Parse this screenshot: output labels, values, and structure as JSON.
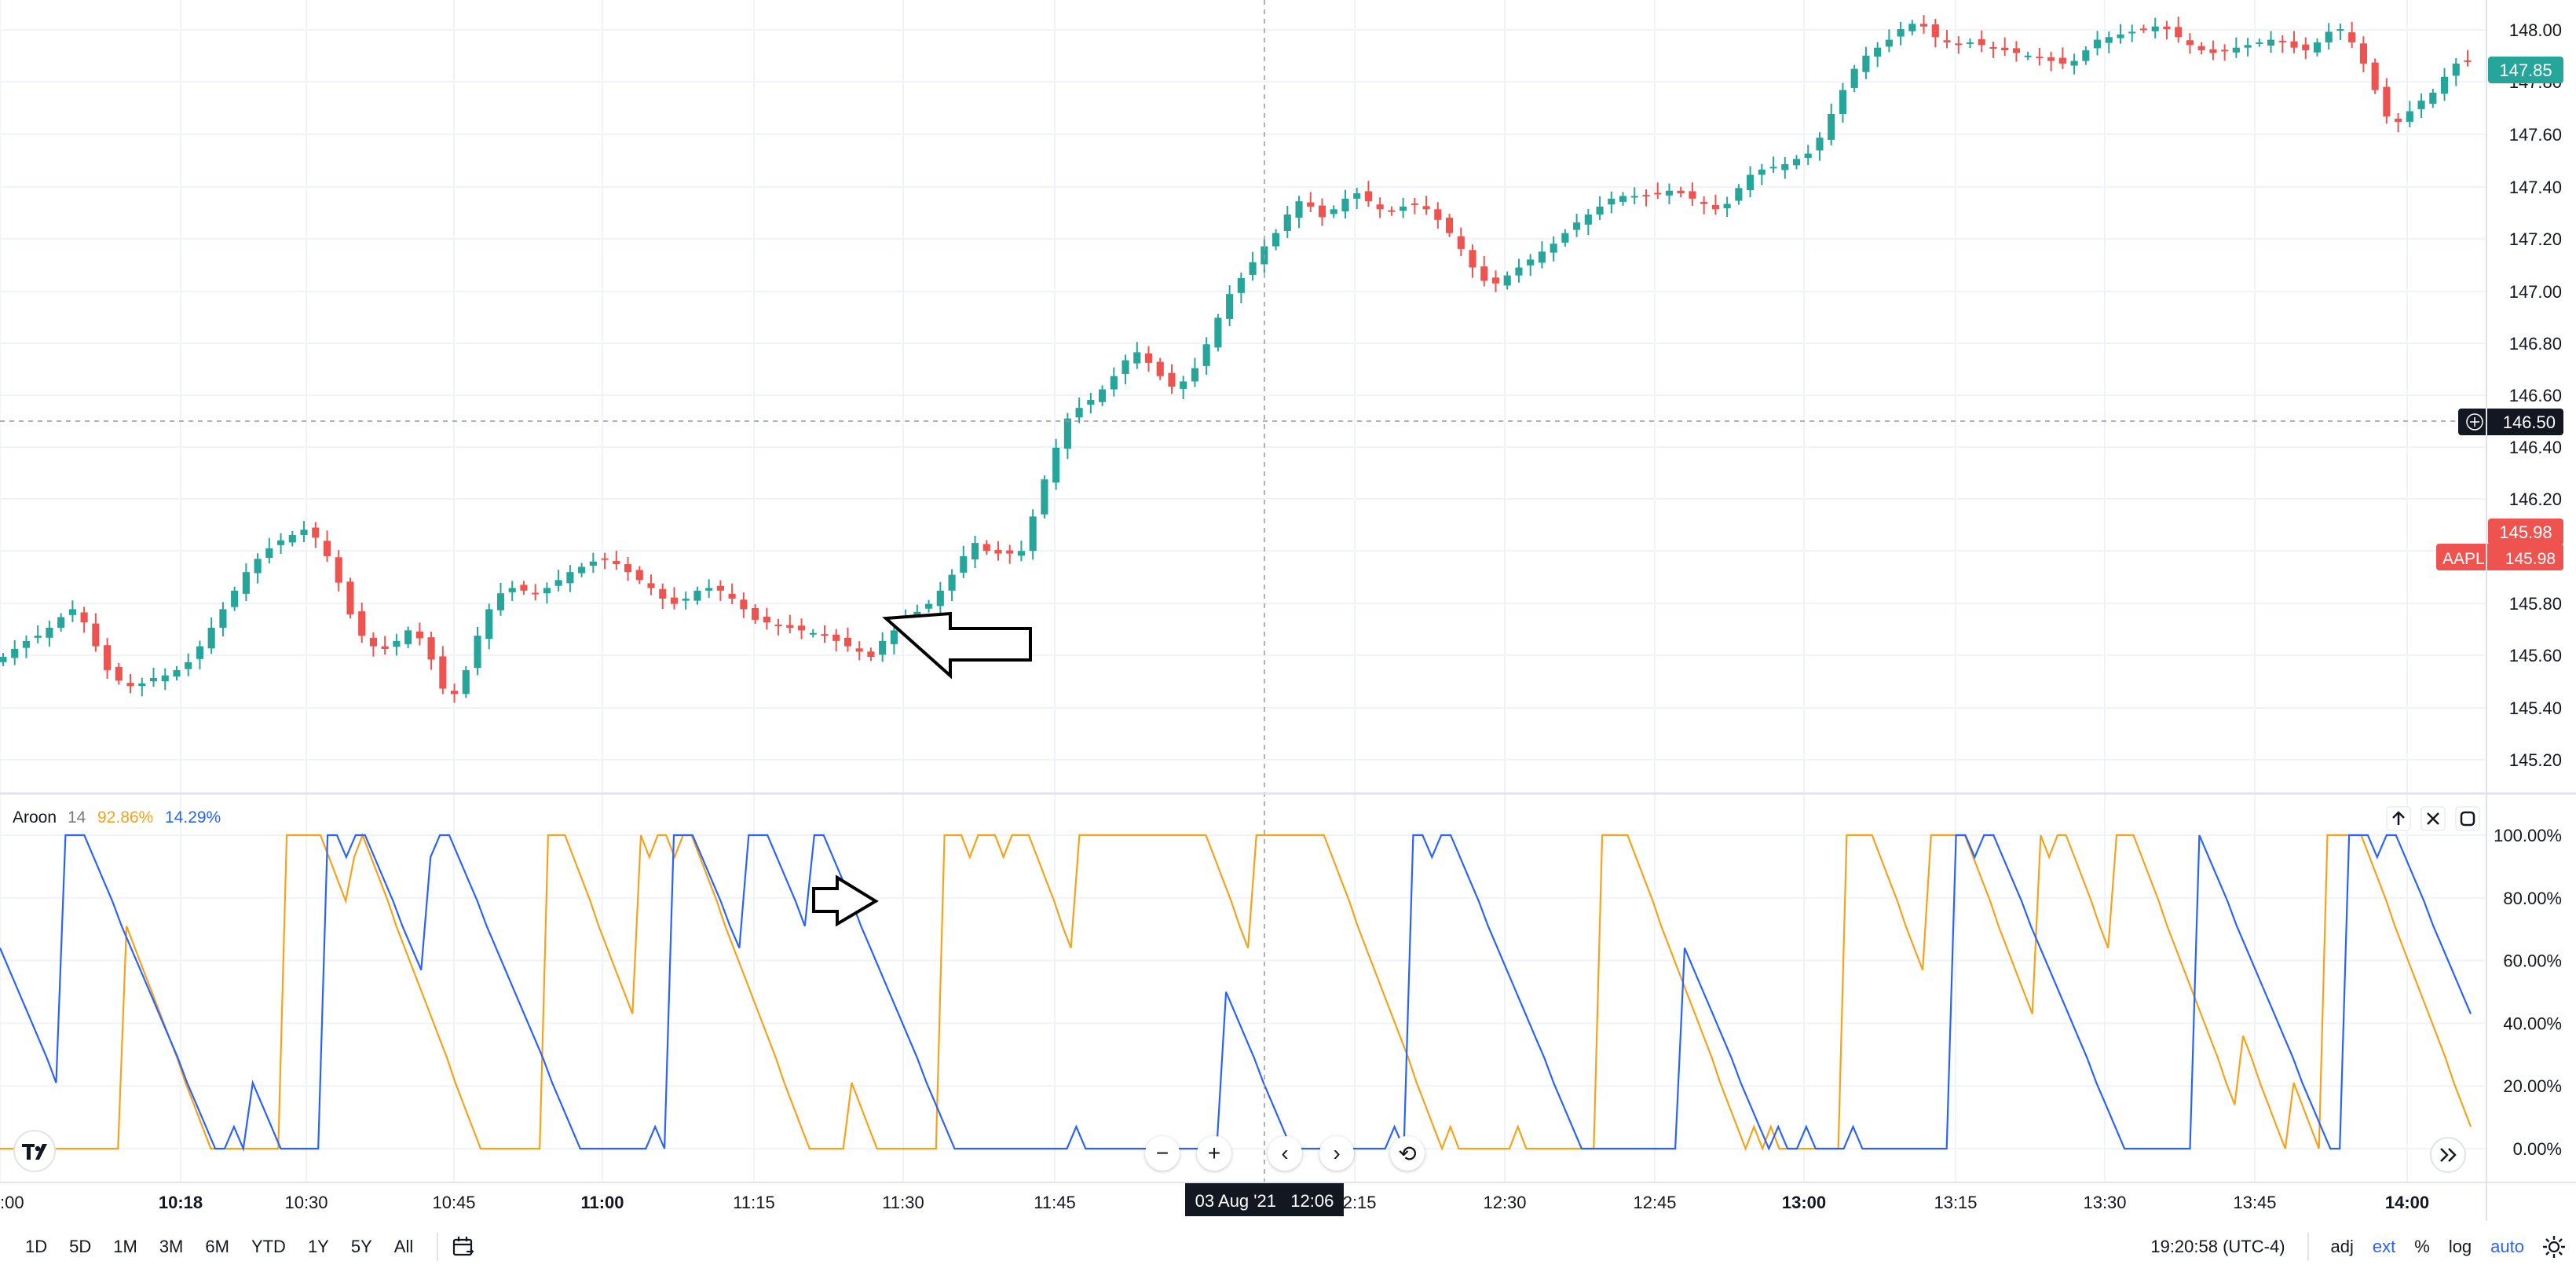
{
  "chart_data": [
    {
      "type": "candlestick",
      "symbol": "AAPL",
      "y_tick_labels": [
        "148.00",
        "147.80",
        "147.60",
        "147.40",
        "147.20",
        "147.00",
        "146.80",
        "146.60",
        "146.40",
        "146.20",
        "146.00",
        "145.80",
        "145.60",
        "145.40",
        "145.20"
      ],
      "x_tick_labels": [
        ":00",
        "10:18",
        "10:30",
        "10:45",
        "11:00",
        "11:15",
        "11:30",
        "11:45",
        "12:15",
        "12:30",
        "12:45",
        "13:00",
        "13:15",
        "13:30",
        "13:45",
        "14:00"
      ],
      "bold_x_ticks": [
        "10:18",
        "11:00",
        "13:00",
        "14:00"
      ],
      "ylim": [
        145.09,
        148.08
      ],
      "close_series": [
        145.6,
        145.63,
        145.66,
        145.68,
        145.71,
        145.75,
        145.78,
        145.73,
        145.64,
        145.55,
        145.51,
        145.49,
        145.5,
        145.52,
        145.53,
        145.55,
        145.58,
        145.64,
        145.71,
        145.78,
        145.85,
        145.92,
        145.97,
        146.01,
        146.04,
        146.06,
        146.08,
        146.05,
        145.98,
        145.88,
        145.76,
        145.68,
        145.64,
        145.63,
        145.66,
        145.7,
        145.67,
        145.59,
        145.48,
        145.46,
        145.55,
        145.68,
        145.78,
        145.84,
        145.86,
        145.85,
        145.84,
        145.86,
        145.89,
        145.92,
        145.94,
        145.96,
        145.97,
        145.95,
        145.92,
        145.89,
        145.86,
        145.82,
        145.8,
        145.82,
        145.85,
        145.86,
        145.85,
        145.82,
        145.78,
        145.74,
        145.73,
        145.72,
        145.71,
        145.7,
        145.69,
        145.68,
        145.66,
        145.64,
        145.62,
        145.6,
        145.66,
        145.7,
        145.74,
        145.77,
        145.8,
        145.85,
        145.91,
        145.98,
        146.03,
        146.0,
        145.99,
        145.99,
        146.0,
        146.13,
        146.27,
        146.39,
        146.5,
        146.54,
        146.57,
        146.61,
        146.66,
        146.72,
        146.75,
        146.71,
        146.66,
        146.62,
        146.64,
        146.69,
        146.78,
        146.88,
        146.97,
        147.03,
        147.09,
        147.15,
        147.2,
        147.27,
        147.32,
        147.3,
        147.26,
        147.29,
        147.33,
        147.35,
        147.32,
        147.29,
        147.28,
        147.3,
        147.31,
        147.29,
        147.25,
        147.2,
        147.14,
        147.07,
        147.02,
        147.01,
        147.04,
        147.07,
        147.1,
        147.13,
        147.16,
        147.2,
        147.24,
        147.27,
        147.3,
        147.33,
        147.34,
        147.34,
        147.34,
        147.35,
        147.36,
        147.35,
        147.33,
        147.31,
        147.29,
        147.31,
        147.37,
        147.42,
        147.44,
        147.45,
        147.46,
        147.48,
        147.5,
        147.56,
        147.65,
        147.74,
        147.82,
        147.87,
        147.9,
        147.93,
        147.97,
        147.99,
        147.98,
        147.94,
        147.92,
        147.91,
        147.92,
        147.91,
        147.9,
        147.89,
        147.88,
        147.87,
        147.86,
        147.85,
        147.84,
        147.85,
        147.89,
        147.93,
        147.94,
        147.95,
        147.96,
        147.97,
        147.98,
        147.97,
        147.94,
        147.91,
        147.89,
        147.88,
        147.89,
        147.9,
        147.91,
        147.92,
        147.93,
        147.92,
        147.9,
        147.89,
        147.92,
        147.96,
        147.97,
        147.92,
        147.84,
        147.74,
        147.64,
        147.62,
        147.66,
        147.7,
        147.73,
        147.79,
        147.84,
        147.85
      ],
      "last_price": "147.85",
      "crosshair_price": "146.50",
      "crosshair_time": "03 Aug '21   12:06",
      "aapl_prev_close_label": "145.98",
      "aapl_tag": "AAPL",
      "aapl_tag_price": "145.98",
      "annotation": "arrow pointing left at the candle near 11:25"
    },
    {
      "type": "line",
      "indicator": "Aroon",
      "period": "14",
      "up_value_label": "92.86%",
      "down_value_label": "14.29%",
      "y_tick_labels": [
        "100.00%",
        "80.00%",
        "60.00%",
        "40.00%",
        "20.00%",
        "0.00%"
      ],
      "ylim": [
        0,
        100
      ],
      "series": [
        {
          "color": "#f7a21b",
          "values": [
            0,
            0,
            0,
            0,
            0,
            0,
            0,
            0,
            0,
            0,
            0,
            0,
            0,
            0,
            0,
            71,
            64,
            57,
            50,
            43,
            36,
            29,
            21,
            14,
            7,
            0,
            0,
            0,
            0,
            0,
            0,
            0,
            0,
            0,
            100,
            100,
            100,
            100,
            100,
            93,
            86,
            79,
            93,
            100,
            93,
            86,
            79,
            71,
            64,
            57,
            50,
            43,
            36,
            29,
            21,
            14,
            7,
            0,
            0,
            0,
            0,
            0,
            0,
            0,
            0,
            100,
            100,
            100,
            93,
            86,
            79,
            71,
            64,
            57,
            50,
            43,
            100,
            93,
            100,
            100,
            93,
            100,
            100,
            93,
            86,
            79,
            71,
            64,
            57,
            50,
            43,
            36,
            29,
            21,
            14,
            7,
            0,
            0,
            0,
            0,
            0,
            21,
            14,
            7,
            0,
            0,
            0,
            0,
            0,
            0,
            0,
            0,
            100,
            100,
            100,
            93,
            100,
            100,
            100,
            93,
            100,
            100,
            100,
            93,
            86,
            79,
            71,
            64,
            100,
            100,
            100,
            100,
            100,
            100,
            100,
            100,
            100,
            100,
            100,
            100,
            100,
            100,
            100,
            100,
            93,
            86,
            79,
            71,
            64,
            100,
            100,
            100,
            100,
            100,
            100,
            100,
            100,
            100,
            93,
            86,
            79,
            71,
            64,
            57,
            50,
            43,
            36,
            29,
            21,
            14,
            7,
            0,
            7,
            0,
            0,
            0,
            0,
            0,
            0,
            0,
            7,
            0,
            0,
            0,
            0,
            0,
            0,
            0,
            0,
            0,
            100,
            100,
            100,
            100,
            93,
            86,
            79,
            71,
            64,
            57,
            50,
            43,
            36,
            29,
            21,
            14,
            7,
            0,
            7,
            0,
            7,
            0,
            0,
            0,
            0,
            0,
            0,
            0,
            0,
            100,
            100,
            100,
            100,
            93,
            86,
            79,
            71,
            64,
            57,
            100,
            100,
            100,
            100,
            100,
            93,
            86,
            79,
            71,
            64,
            57,
            50,
            43,
            100,
            93,
            100,
            100,
            93,
            86,
            79,
            71,
            64,
            100,
            100,
            100,
            93,
            86,
            79,
            71,
            64,
            57,
            50,
            43,
            36,
            29,
            21,
            14,
            36,
            29,
            21,
            14,
            7,
            0,
            21,
            14,
            7,
            0,
            100,
            100,
            100,
            100,
            100,
            93,
            86,
            79,
            71,
            64,
            57,
            50,
            43,
            36,
            29,
            21,
            14,
            7
          ]
        },
        {
          "color": "#2962ff",
          "values": [
            64,
            57,
            50,
            43,
            36,
            29,
            21,
            100,
            100,
            100,
            93,
            86,
            79,
            71,
            64,
            57,
            50,
            43,
            36,
            29,
            21,
            14,
            7,
            0,
            0,
            7,
            0,
            21,
            14,
            7,
            0,
            0,
            0,
            0,
            0,
            100,
            100,
            93,
            100,
            100,
            93,
            86,
            79,
            71,
            64,
            57,
            93,
            100,
            100,
            93,
            86,
            79,
            71,
            64,
            57,
            50,
            43,
            36,
            29,
            21,
            14,
            7,
            0,
            0,
            0,
            0,
            0,
            0,
            0,
            0,
            7,
            0,
            100,
            100,
            100,
            93,
            86,
            79,
            71,
            64,
            100,
            100,
            100,
            93,
            86,
            79,
            71,
            100,
            100,
            93,
            86,
            79,
            71,
            64,
            57,
            50,
            43,
            36,
            29,
            21,
            14,
            7,
            0,
            0,
            0,
            0,
            0,
            0,
            0,
            0,
            0,
            0,
            0,
            0,
            0,
            7,
            0,
            0,
            0,
            0,
            0,
            0,
            0,
            0,
            0,
            0,
            0,
            0,
            0,
            0,
            0,
            50,
            43,
            36,
            29,
            21,
            14,
            7,
            0,
            0,
            0,
            0,
            0,
            0,
            0,
            0,
            0,
            0,
            0,
            7,
            0,
            100,
            100,
            93,
            100,
            100,
            93,
            86,
            79,
            71,
            64,
            57,
            50,
            43,
            36,
            29,
            21,
            14,
            7,
            0,
            0,
            0,
            0,
            0,
            0,
            0,
            0,
            0,
            0,
            0,
            64,
            57,
            50,
            43,
            36,
            29,
            21,
            14,
            7,
            0,
            7,
            0,
            0,
            7,
            0,
            0,
            0,
            0,
            7,
            0,
            0,
            0,
            0,
            0,
            0,
            0,
            0,
            0,
            0,
            100,
            100,
            93,
            100,
            100,
            93,
            86,
            79,
            71,
            64,
            57,
            50,
            43,
            36,
            29,
            21,
            14,
            7,
            0,
            0,
            0,
            0,
            0,
            0,
            0,
            0,
            100,
            93,
            86,
            79,
            71,
            64,
            57,
            50,
            43,
            36,
            29,
            21,
            14,
            7,
            0,
            0,
            100,
            100,
            100,
            93,
            100,
            100,
            93,
            86,
            79,
            71,
            64,
            57,
            50,
            43
          ]
        }
      ],
      "annotation": "arrow pointing right at Aroon Up crossing near 11:28"
    }
  ],
  "bottombar": {
    "ranges": [
      "1D",
      "5D",
      "1M",
      "3M",
      "6M",
      "YTD",
      "1Y",
      "5Y",
      "All"
    ],
    "calendar_icon": "calendar-icon",
    "time": "19:20:58 (UTC-4)",
    "adj": "adj",
    "ext": "ext",
    "percent": "%",
    "log": "log",
    "auto": "auto",
    "settings_icon": "gear-icon"
  },
  "colors": {
    "up": "#26a69a",
    "down": "#ef5350",
    "aroon_up": "#f7a21b",
    "aroon_down": "#2962ff",
    "grid": "#f0f3fa"
  }
}
